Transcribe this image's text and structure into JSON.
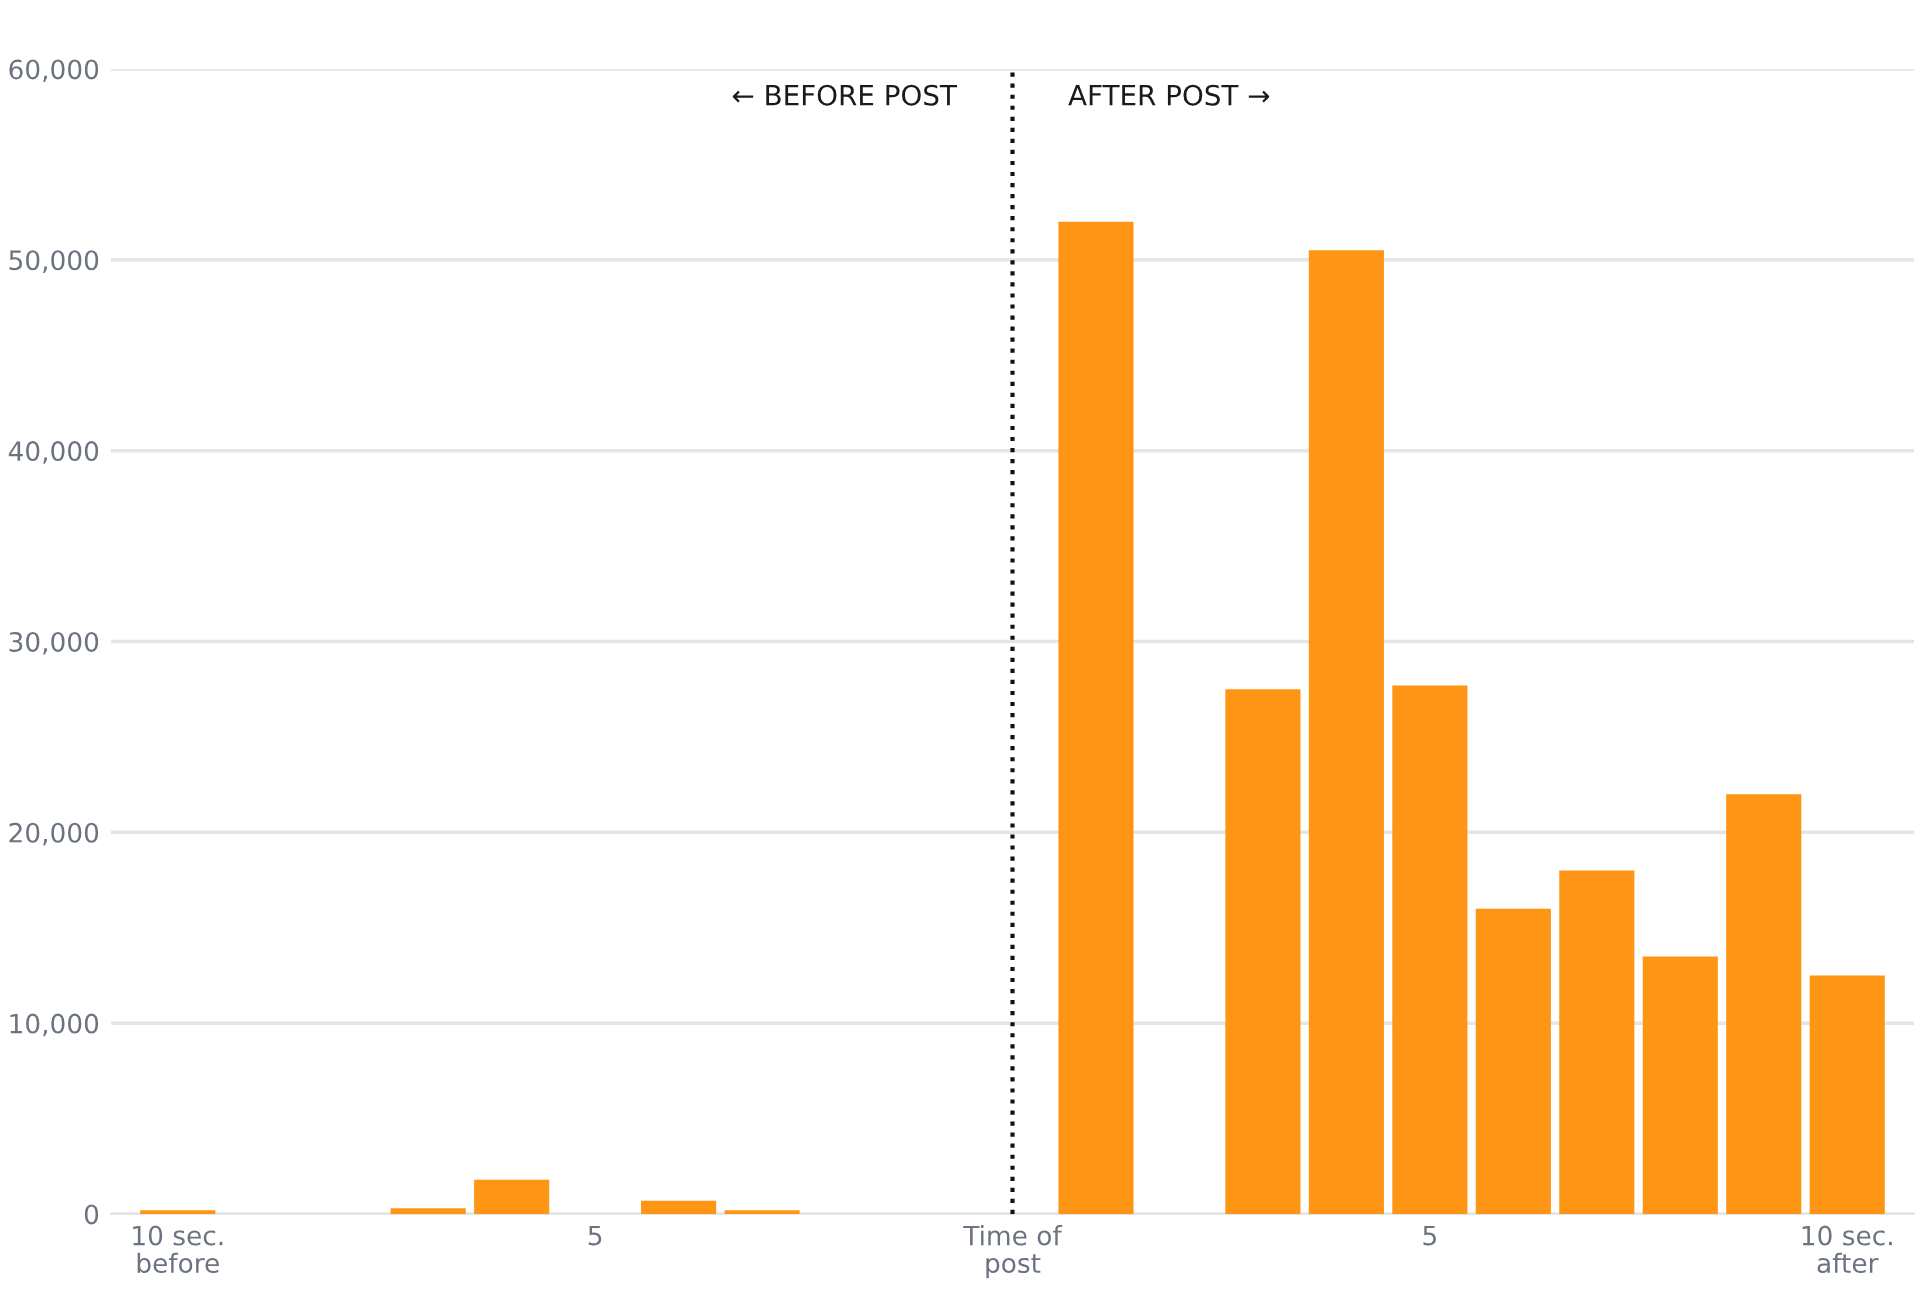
{
  "chart_data": {
    "type": "bar",
    "x": [
      -10,
      -9,
      -8,
      -7,
      -6,
      -5,
      -4,
      -3,
      -2,
      -1,
      0,
      1,
      2,
      3,
      4,
      5,
      6,
      7,
      8,
      9,
      10
    ],
    "values": [
      200,
      null,
      null,
      300,
      1800,
      null,
      700,
      200,
      null,
      null,
      null,
      52000,
      null,
      27500,
      50500,
      27700,
      16000,
      18000,
      13500,
      22000,
      12500
    ],
    "color": "#ff9514",
    "xlim": [
      -10.8,
      10.8
    ],
    "xticks": [
      {
        "value": -10,
        "label": "10 sec.\nbefore"
      },
      {
        "value": -5,
        "label": "5"
      },
      {
        "value": 0,
        "label": "Time of\npost"
      },
      {
        "value": 5,
        "label": "5"
      },
      {
        "value": 10,
        "label": "10 sec.\nafter"
      }
    ],
    "ylim": [
      0,
      60000
    ],
    "yticks": [
      {
        "value": 0,
        "label": "0"
      },
      {
        "value": 10000,
        "label": "10,000"
      },
      {
        "value": 20000,
        "label": "20,000"
      },
      {
        "value": 30000,
        "label": "30,000"
      },
      {
        "value": 40000,
        "label": "40,000"
      },
      {
        "value": 50000,
        "label": "50,000"
      },
      {
        "value": 60000,
        "label": "60,000"
      }
    ],
    "grid": "y",
    "ref_lines": [
      {
        "axis": "x",
        "value": 0,
        "color": "#111111",
        "line_style": "dotted"
      }
    ],
    "annotations": [
      "← BEFORE POST",
      "AFTER POST →"
    ]
  }
}
